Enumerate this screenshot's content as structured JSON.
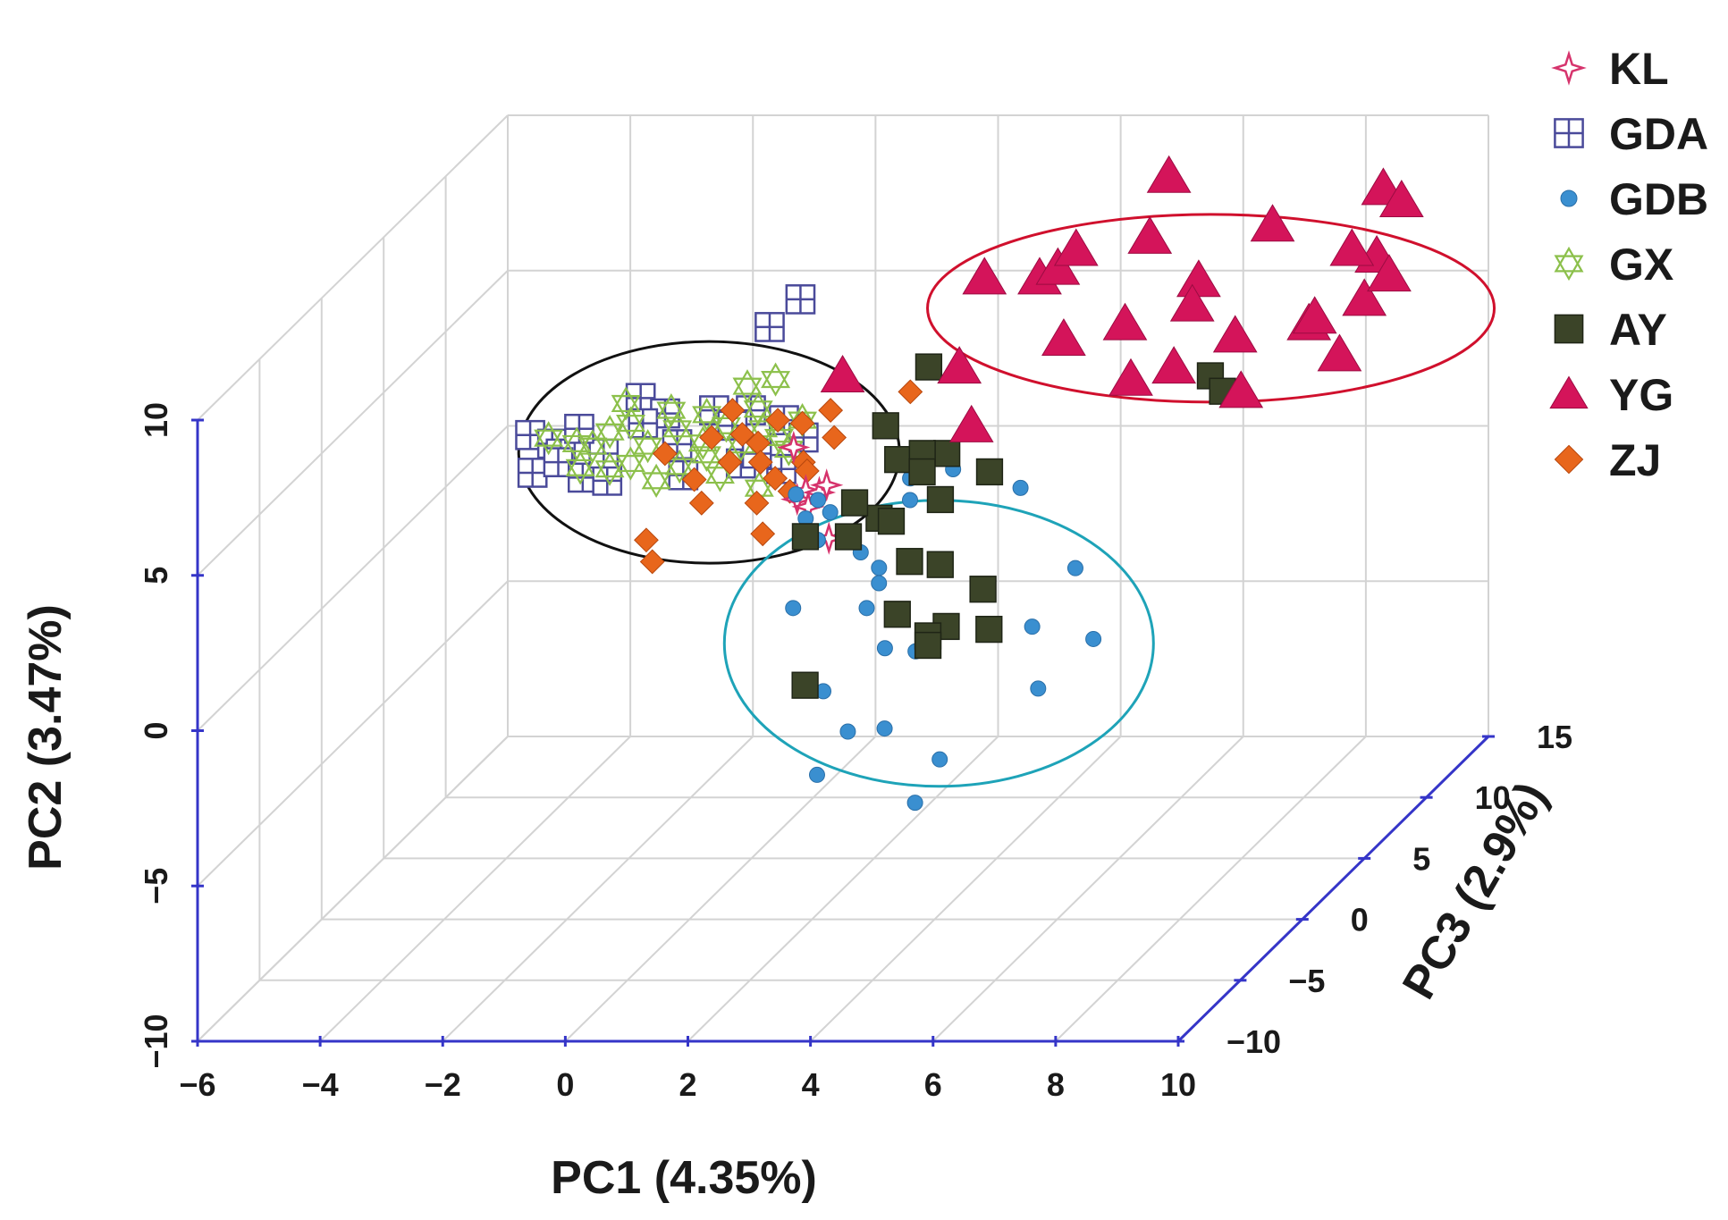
{
  "chart_data": {
    "type": "scatter",
    "projection": "3d",
    "axes": {
      "x": {
        "label": "PC1 (4.35%)",
        "range": [
          -6,
          10
        ],
        "ticks": [
          -6,
          -4,
          -2,
          0,
          2,
          4,
          6,
          8,
          10
        ]
      },
      "y": {
        "label": "PC2 (3.47%)",
        "range": [
          -10,
          10
        ],
        "ticks": [
          -10,
          -5,
          0,
          5,
          10
        ]
      },
      "z": {
        "label": "PC3 (2.9%)",
        "range": [
          -10,
          15
        ],
        "ticks": [
          -10,
          -5,
          0,
          5,
          10,
          15
        ]
      }
    },
    "grid": true,
    "legend_position": "top-right",
    "legend": [
      {
        "name": "KL",
        "marker": "star-cross",
        "color": "#d6336c"
      },
      {
        "name": "GDA",
        "marker": "square-grid",
        "color": "#4a4a9a"
      },
      {
        "name": "GDB",
        "marker": "circle",
        "color": "#3a8fd0"
      },
      {
        "name": "GX",
        "marker": "hexagram",
        "color": "#8cc04b"
      },
      {
        "name": "AY",
        "marker": "square",
        "color": "#3b4428"
      },
      {
        "name": "YG",
        "marker": "triangle",
        "color": "#d4145a"
      },
      {
        "name": "ZJ",
        "marker": "diamond",
        "color": "#e8661c"
      }
    ],
    "series": [
      {
        "name": "YG",
        "points": [
          [
            2.5,
            7.5,
            0
          ],
          [
            3.6,
            8.3,
            6
          ],
          [
            4.5,
            8.3,
            6
          ],
          [
            5.8,
            10,
            10
          ],
          [
            5,
            9,
            5
          ],
          [
            5.5,
            10,
            4
          ],
          [
            6.5,
            10,
            5
          ],
          [
            6.5,
            8,
            3
          ],
          [
            7.5,
            9,
            4
          ],
          [
            7.5,
            7,
            2
          ],
          [
            4,
            7,
            2
          ],
          [
            5.5,
            7.5,
            3
          ],
          [
            7,
            7,
            1
          ],
          [
            4.4,
            5.5,
            1
          ],
          [
            8.3,
            10,
            6
          ],
          [
            7.8,
            9,
            2
          ],
          [
            8.5,
            8,
            2
          ],
          [
            9,
            7,
            0
          ],
          [
            9.5,
            8,
            3
          ],
          [
            9.5,
            10,
            9
          ],
          [
            10,
            8,
            5
          ],
          [
            10,
            10,
            8
          ],
          [
            10,
            9,
            6
          ],
          [
            10,
            7,
            3
          ],
          [
            10,
            10,
            4
          ],
          [
            10,
            8,
            7
          ],
          [
            10,
            9,
            1
          ]
        ]
      },
      {
        "name": "AY",
        "points": [
          [
            3.5,
            7,
            2
          ],
          [
            3,
            5.5,
            1
          ],
          [
            4.2,
            5,
            0
          ],
          [
            4.5,
            4.3,
            -2
          ],
          [
            5.1,
            4.8,
            -1
          ],
          [
            3.5,
            3.7,
            -2
          ],
          [
            3,
            4,
            -1.5
          ],
          [
            2.5,
            3.5,
            -3
          ],
          [
            3.1,
            3.3,
            -2.5
          ],
          [
            8.5,
            7.5,
            0
          ],
          [
            8.8,
            7.2,
            -0.5
          ],
          [
            4.7,
            2.6,
            -3
          ],
          [
            4.2,
            2.7,
            -3
          ],
          [
            5.6,
            2.2,
            -4
          ],
          [
            5.9,
            1.3,
            -5
          ],
          [
            5,
            1,
            -4
          ],
          [
            4.6,
            0.5,
            -3.5
          ],
          [
            2.9,
            -0.5,
            -5
          ],
          [
            4.5,
            0,
            -3
          ],
          [
            4,
            1,
            -3
          ],
          [
            3.5,
            5,
            -0.5
          ],
          [
            3.8,
            3.8,
            -2.5
          ],
          [
            3.8,
            5,
            0
          ],
          [
            4,
            4.8,
            -1
          ]
        ]
      },
      {
        "name": "GDB",
        "points": [
          [
            4.1,
            4.1,
            1
          ],
          [
            3.5,
            4,
            0.5
          ],
          [
            3.6,
            3.5,
            0
          ],
          [
            3.3,
            3.2,
            -1
          ],
          [
            2.1,
            3.3,
            -1
          ],
          [
            2.4,
            2.8,
            -1.5
          ],
          [
            2.5,
            3,
            -2
          ],
          [
            3.6,
            2.3,
            -2.5
          ],
          [
            3.7,
            2,
            -3
          ],
          [
            2.3,
            1.2,
            -3
          ],
          [
            3.5,
            1.2,
            -3
          ],
          [
            4.9,
            0.7,
            -3.5
          ],
          [
            4,
            0.3,
            -4
          ],
          [
            4.5,
            0.2,
            -4
          ],
          [
            6.2,
            0.6,
            -3
          ],
          [
            7.3,
            0.4,
            -3.5
          ],
          [
            6.5,
            -1,
            -4
          ],
          [
            3.4,
            -0.3,
            -6
          ],
          [
            4.4,
            -1.5,
            -6
          ],
          [
            3.8,
            -1.6,
            -6
          ],
          [
            3.5,
            -2.6,
            -7
          ],
          [
            5.4,
            -2.3,
            -6.5
          ],
          [
            5.2,
            -3.3,
            -7.5
          ],
          [
            6.5,
            1.7,
            -1
          ],
          [
            5.2,
            3.5,
            1
          ],
          [
            3.2,
            2.6,
            -2
          ],
          [
            2.2,
            3.7,
            -0.5
          ],
          [
            1.8,
            3.8,
            -0.3
          ],
          [
            2.5,
            3.5,
            -1
          ]
        ]
      },
      {
        "name": "KL",
        "points": [
          [
            2,
            4,
            -0.5
          ],
          [
            2.2,
            3.9,
            -0.4
          ],
          [
            1.9,
            3.8,
            -0.7
          ],
          [
            2.3,
            4.1,
            -0.3
          ],
          [
            2.1,
            3.6,
            -0.8
          ],
          [
            2.6,
            2.9,
            -1.6
          ],
          [
            1.6,
            5,
            0.5
          ]
        ]
      },
      {
        "name": "GDA",
        "points": [
          [
            -2.8,
            5.2,
            1
          ],
          [
            -2.4,
            5,
            0.8
          ],
          [
            -2.2,
            4.8,
            0.5
          ],
          [
            -2.6,
            4.3,
            0.2
          ],
          [
            -2.2,
            4.6,
            0.3
          ],
          [
            -1.7,
            4.3,
            -0.2
          ],
          [
            -1.3,
            4.2,
            -0.2
          ],
          [
            -1.5,
            4.8,
            0.5
          ],
          [
            -1.2,
            6,
            2
          ],
          [
            -2,
            5.4,
            1
          ],
          [
            -0.7,
            5.7,
            1.5
          ],
          [
            0.1,
            5.8,
            1.5
          ],
          [
            0.7,
            5.8,
            1.5
          ],
          [
            0.5,
            5.5,
            1
          ],
          [
            1.3,
            5.6,
            1.2
          ],
          [
            1.7,
            5.2,
            0.8
          ],
          [
            1.5,
            4.5,
            0
          ],
          [
            0.8,
            4.6,
            0.2
          ],
          [
            -0.1,
            4.3,
            0
          ],
          [
            -0.3,
            5.1,
            0.5
          ],
          [
            0.5,
            7.5,
            4
          ],
          [
            0.8,
            8,
            5
          ],
          [
            1,
            4.8,
            0.5
          ],
          [
            -1,
            5.5,
            1.2
          ]
        ]
      },
      {
        "name": "GX",
        "points": [
          [
            -2.5,
            5.1,
            1
          ],
          [
            -2,
            5,
            0.8
          ],
          [
            -1.7,
            5,
            0.6
          ],
          [
            -1.3,
            4.5,
            0
          ],
          [
            -1.5,
            5.3,
            1
          ],
          [
            -1.2,
            5.5,
            1.2
          ],
          [
            -0.8,
            5,
            0.6
          ],
          [
            -0.4,
            5.4,
            1
          ],
          [
            0,
            5.7,
            1.4
          ],
          [
            0.4,
            5.5,
            1
          ],
          [
            0.7,
            5,
            0.7
          ],
          [
            1,
            5.4,
            1
          ],
          [
            1.3,
            5.2,
            0.8
          ],
          [
            -0.6,
            5.8,
            1.5
          ],
          [
            -1,
            4.6,
            0.2
          ],
          [
            0.2,
            4.8,
            0.4
          ],
          [
            0.8,
            5.8,
            1.6
          ],
          [
            1.5,
            4.9,
            0.6
          ],
          [
            0.5,
            6.3,
            2.2
          ],
          [
            0.9,
            6.4,
            2.5
          ],
          [
            -0.5,
            4.2,
            -0.2
          ],
          [
            0.5,
            4.3,
            0
          ],
          [
            -1.8,
            4.5,
            0.1
          ],
          [
            1.2,
            4,
            -0.3
          ],
          [
            0.1,
            5.1,
            0.6
          ],
          [
            -0.2,
            4.5,
            0.2
          ],
          [
            1.6,
            5.6,
            1.2
          ],
          [
            -1.4,
            5.9,
            1.8
          ]
        ]
      },
      {
        "name": "ZJ",
        "points": [
          [
            -0.5,
            4.8,
            0.5
          ],
          [
            0.2,
            5.2,
            0.8
          ],
          [
            0.6,
            4.6,
            0.3
          ],
          [
            1,
            5.1,
            0.6
          ],
          [
            1.4,
            4.2,
            0
          ],
          [
            1.8,
            4.6,
            0.3
          ],
          [
            2.2,
            5.2,
            0.8
          ],
          [
            0.3,
            3.6,
            -0.5
          ],
          [
            1.2,
            3.6,
            -0.5
          ],
          [
            -0.4,
            2.8,
            -1.5
          ],
          [
            -0.2,
            2.3,
            -2
          ],
          [
            1.5,
            3,
            -1.5
          ],
          [
            1.6,
            5.5,
            1.2
          ],
          [
            1.2,
            5.6,
            1.2
          ],
          [
            2,
            5.8,
            1.5
          ],
          [
            0.7,
            5.3,
            0.8
          ],
          [
            1.9,
            4.4,
            0.1
          ],
          [
            3.2,
            6.2,
            2
          ],
          [
            0.4,
            5.8,
            1.5
          ],
          [
            1.1,
            4.6,
            0.3
          ],
          [
            0.1,
            4.2,
            -0.1
          ],
          [
            1.7,
            3.9,
            -0.3
          ]
        ]
      }
    ],
    "cluster_ellipses": [
      {
        "color": "#111111",
        "center": [
          0.2,
          4.8,
          0.6
        ]
      },
      {
        "color": "#d0102d",
        "center": [
          7.8,
          8.3,
          3.5
        ]
      },
      {
        "color": "#1ea3b8",
        "center": [
          4.8,
          0.3,
          -3.6
        ]
      }
    ]
  }
}
